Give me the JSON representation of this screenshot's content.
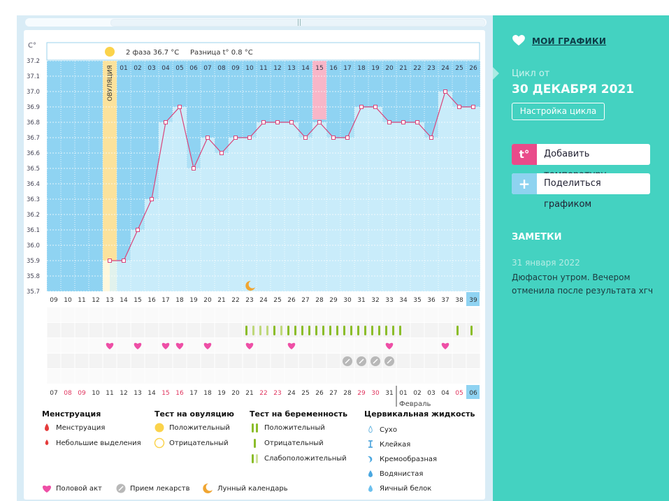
{
  "sidebar": {
    "title": "МОИ ГРАФИКИ",
    "cycle_from_label": "Цикл от",
    "cycle_date": "30 ДЕКАБРЯ 2021",
    "cycle_settings_button": "Настройка цикла",
    "add_temperature_button": "Добавить температуру",
    "add_temperature_icon_text": "t°",
    "share_button": "Поделиться графиком",
    "notes_title": "ЗАМЕТКИ",
    "note_date": "31 января 2022",
    "note_text": "Дюфастон утром. Вечером отменила после результата хгч",
    "accent_color": "#44d2c1"
  },
  "chart_header": {
    "phase_label": "2 фаза",
    "phase_temp": "36.7 °C",
    "diff_label": "Разница t°",
    "diff_value": "0.8 °C",
    "ovulation_label": "ОВУЛЯЦИЯ"
  },
  "chart_data": {
    "type": "line",
    "title": "",
    "ylabel": "C°",
    "ylim": [
      35.7,
      37.2
    ],
    "y_ticks": [
      "35.7",
      "35.8",
      "35.9",
      "36.0",
      "36.1",
      "36.2",
      "36.3",
      "36.4",
      "36.5",
      "36.6",
      "36.7",
      "36.8",
      "36.9",
      "37.0",
      "37.1",
      "37.2"
    ],
    "cycle_days": [
      "09",
      "10",
      "11",
      "12",
      "13",
      "14",
      "15",
      "16",
      "17",
      "18",
      "19",
      "20",
      "21",
      "22",
      "23",
      "24",
      "25",
      "26",
      "27",
      "28",
      "29",
      "30",
      "31",
      "32",
      "33",
      "34",
      "35",
      "36",
      "37",
      "38",
      "39"
    ],
    "phase_days": [
      "01",
      "02",
      "03",
      "04",
      "05",
      "06",
      "07",
      "08",
      "09",
      "10",
      "11",
      "12",
      "13",
      "14",
      "15",
      "16",
      "17",
      "18",
      "19",
      "20",
      "21",
      "22",
      "23",
      "24",
      "25",
      "26"
    ],
    "highlighted_phase_day": "15",
    "highlighted_cycle_day": "39",
    "ovulation_cycle_day": "13",
    "series": [
      {
        "name": "Температура",
        "cycle_days_start": 13,
        "values": [
          35.9,
          35.9,
          36.1,
          36.3,
          36.8,
          36.9,
          36.5,
          36.7,
          36.6,
          36.7,
          36.7,
          36.8,
          36.8,
          36.8,
          36.7,
          36.8,
          36.7,
          36.7,
          36.9,
          36.9,
          36.8,
          36.8,
          36.8,
          36.7,
          37.0,
          36.9,
          36.9
        ]
      }
    ],
    "moon_cycle_day": 23,
    "ovulation_test_positive_cycle_day": 13,
    "pregnancy_tests": [
      {
        "day": 23,
        "type": "positive"
      },
      {
        "day": 24,
        "type": "weak"
      },
      {
        "day": 25,
        "type": "weak"
      },
      {
        "day": 26,
        "type": "weak"
      },
      {
        "day": 27,
        "type": "positive"
      },
      {
        "day": 28,
        "type": "weak"
      },
      {
        "day": 29,
        "type": "positive"
      },
      {
        "day": 30,
        "type": "positive"
      },
      {
        "day": 31,
        "type": "positive"
      },
      {
        "day": 32,
        "type": "positive"
      },
      {
        "day": 33,
        "type": "positive"
      },
      {
        "day": 34,
        "type": "positive"
      },
      {
        "day": 35,
        "type": "positive"
      },
      {
        "day": 36,
        "type": "positive"
      },
      {
        "day": 37,
        "type": "positive"
      },
      {
        "day": 38,
        "type": "positive"
      },
      {
        "day": 39,
        "type": "positive"
      },
      {
        "day": 40,
        "type": "positive"
      },
      {
        "day": 41,
        "type": "positive"
      },
      {
        "day": 42,
        "type": "positive"
      },
      {
        "day": 43,
        "type": "positive"
      },
      {
        "day": 44,
        "type": "positive"
      },
      {
        "day": 45,
        "type": "positive"
      }
    ],
    "intercourse_cycle_days": [
      13,
      15,
      17,
      18,
      20,
      23,
      26,
      33,
      37
    ],
    "medication_cycle_days": [
      30,
      31,
      32,
      33
    ],
    "calendar_dates": [
      "07",
      "08",
      "09",
      "10",
      "11",
      "12",
      "13",
      "14",
      "15",
      "16",
      "17",
      "18",
      "19",
      "20",
      "21",
      "22",
      "23",
      "24",
      "25",
      "26",
      "27",
      "28",
      "29",
      "30",
      "31",
      "01",
      "02",
      "03",
      "04",
      "05",
      "06"
    ],
    "red_dates": [
      "08",
      "09",
      "15",
      "16",
      "22",
      "23",
      "29",
      "30",
      "05"
    ],
    "highlighted_date": "06",
    "month_label": "Февраль"
  },
  "legend": {
    "menstruation": {
      "title": "Менструация",
      "items": [
        "Менструация",
        "Небольшие выделения"
      ]
    },
    "ovulation_test": {
      "title": "Тест на овуляцию",
      "items": [
        "Положительный",
        "Отрицательный"
      ]
    },
    "pregnancy_test": {
      "title": "Тест на беременность",
      "items": [
        "Положительный",
        "Отрицательный",
        "Слабоположительный"
      ]
    },
    "cervical": {
      "title": "Цервикальная жидкость",
      "items": [
        "Сухо",
        "Клейкая",
        "Кремообразная",
        "Водянистая",
        "Яичный белок"
      ]
    },
    "bottom": [
      "Половой акт",
      "Прием лекарств",
      "Лунный календарь"
    ]
  }
}
